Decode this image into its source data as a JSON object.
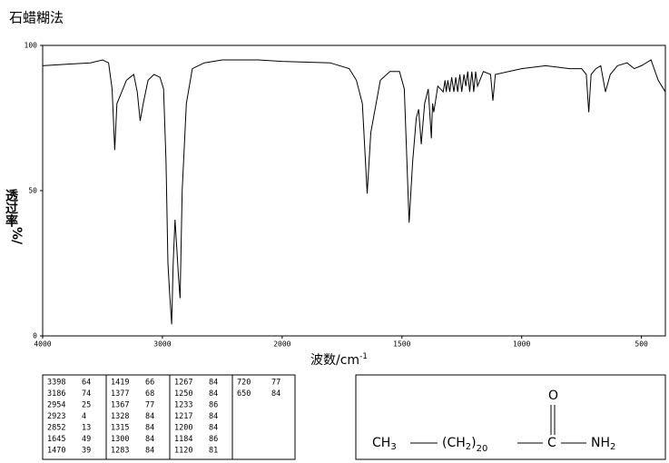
{
  "chart_data": {
    "type": "line",
    "title": "石蜡糊法",
    "ylabel": "透过率",
    "ylabel_unit": "%/",
    "xlabel": "波数/cm",
    "xlabel_sup": "-1",
    "xlim": [
      4000,
      400
    ],
    "x_scale_break": 2000,
    "x_scale_factor": 2,
    "xticks": [
      4000,
      3000,
      2000,
      1500,
      1000,
      500
    ],
    "ylim": [
      0,
      100
    ],
    "yticks": [
      0,
      50,
      100
    ],
    "x": [
      4000,
      3800,
      3600,
      3500,
      3450,
      3420,
      3398,
      3380,
      3350,
      3300,
      3270,
      3240,
      3210,
      3186,
      3160,
      3120,
      3070,
      3020,
      2990,
      2970,
      2954,
      2940,
      2923,
      2910,
      2895,
      2880,
      2865,
      2852,
      2835,
      2800,
      2750,
      2650,
      2500,
      2200,
      2000,
      1800,
      1720,
      1690,
      1665,
      1645,
      1630,
      1590,
      1550,
      1510,
      1490,
      1470,
      1455,
      1440,
      1430,
      1419,
      1405,
      1390,
      1377,
      1372,
      1367,
      1350,
      1328,
      1320,
      1315,
      1308,
      1300,
      1292,
      1283,
      1275,
      1267,
      1258,
      1250,
      1241,
      1233,
      1225,
      1217,
      1208,
      1200,
      1192,
      1184,
      1160,
      1130,
      1120,
      1110,
      1000,
      900,
      800,
      750,
      730,
      720,
      710,
      690,
      670,
      650,
      630,
      600,
      560,
      530,
      500,
      460,
      430,
      400
    ],
    "series": [
      {
        "color": "#000000",
        "values": [
          93,
          93.5,
          94,
          95,
          94,
          85,
          64,
          80,
          83,
          88,
          89,
          90,
          84,
          74,
          80,
          88,
          90,
          89,
          85,
          60,
          25,
          15,
          4,
          25,
          40,
          30,
          20,
          13,
          50,
          80,
          92,
          94,
          95,
          95,
          94.5,
          94,
          92,
          88,
          80,
          49,
          70,
          88,
          91,
          91,
          85,
          39,
          60,
          75,
          78,
          66,
          80,
          85,
          68,
          80,
          77,
          86,
          84,
          88,
          84,
          88,
          84,
          89,
          84,
          89,
          84,
          90,
          84,
          90,
          86,
          91,
          84,
          91,
          84,
          91,
          86,
          91,
          90,
          81,
          90,
          92,
          93,
          92,
          92,
          90,
          77,
          90,
          92,
          93,
          84,
          90,
          93,
          94,
          92,
          93,
          95,
          88,
          84
        ]
      }
    ]
  },
  "peak_table": {
    "rows": [
      [
        3398,
        64
      ],
      [
        3186,
        74
      ],
      [
        2954,
        25
      ],
      [
        2923,
        4
      ],
      [
        2852,
        13
      ],
      [
        1645,
        49
      ],
      [
        1470,
        39
      ],
      [
        1419,
        66
      ],
      [
        1377,
        68
      ],
      [
        1367,
        77
      ],
      [
        1328,
        84
      ],
      [
        1315,
        84
      ],
      [
        1300,
        84
      ],
      [
        1283,
        84
      ],
      [
        1267,
        84
      ],
      [
        1250,
        84
      ],
      [
        1233,
        86
      ],
      [
        1217,
        84
      ],
      [
        1200,
        84
      ],
      [
        1184,
        86
      ],
      [
        1120,
        81
      ],
      [
        720,
        77
      ],
      [
        650,
        84
      ]
    ]
  },
  "structure": {
    "left": "CH",
    "left_sub": "3",
    "group_open": "(CH",
    "group_sub": "2",
    "group_close": ")",
    "repeat": "20",
    "carbon": "C",
    "oxygen": "O",
    "amine": "NH",
    "amine_sub": "2"
  }
}
